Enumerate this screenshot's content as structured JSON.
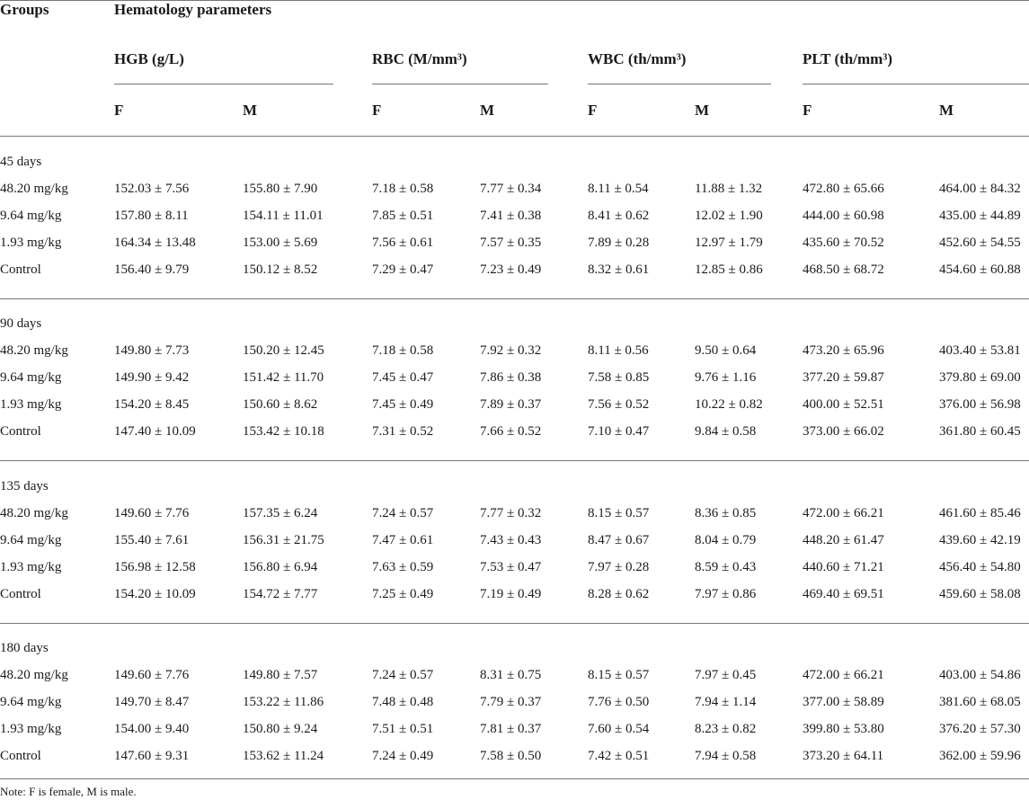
{
  "header": {
    "groups": "Groups",
    "parameters": "Hematology parameters",
    "columns": [
      "HGB (g/L)",
      "RBC (M/mm³)",
      "WBC (th/mm³)",
      "PLT (th/mm³)"
    ],
    "female": "F",
    "male": "M"
  },
  "sections": [
    {
      "label": "45 days",
      "rows": [
        {
          "group": "48.20 mg/kg",
          "cells": [
            "152.03 ± 7.56",
            "155.80 ± 7.90",
            "7.18 ± 0.58",
            "7.77 ± 0.34",
            "8.11 ± 0.54",
            "11.88 ± 1.32",
            "472.80 ± 65.66",
            "464.00 ± 84.32"
          ]
        },
        {
          "group": "9.64 mg/kg",
          "cells": [
            "157.80 ± 8.11",
            "154.11 ± 11.01",
            "7.85 ± 0.51",
            "7.41 ± 0.38",
            "8.41 ± 0.62",
            "12.02 ± 1.90",
            "444.00 ± 60.98",
            "435.00 ± 44.89"
          ]
        },
        {
          "group": "1.93 mg/kg",
          "cells": [
            "164.34 ± 13.48",
            "153.00 ± 5.69",
            "7.56 ± 0.61",
            "7.57 ± 0.35",
            "7.89 ± 0.28",
            "12.97 ± 1.79",
            "435.60 ± 70.52",
            "452.60 ± 54.55"
          ]
        },
        {
          "group": "Control",
          "cells": [
            "156.40 ± 9.79",
            "150.12 ± 8.52",
            "7.29 ± 0.47",
            "7.23 ± 0.49",
            "8.32 ± 0.61",
            "12.85 ± 0.86",
            "468.50 ± 68.72",
            "454.60 ± 60.88"
          ]
        }
      ]
    },
    {
      "label": "90 days",
      "rows": [
        {
          "group": "48.20 mg/kg",
          "cells": [
            "149.80 ± 7.73",
            "150.20 ± 12.45",
            "7.18 ± 0.58",
            "7.92 ± 0.32",
            "8.11 ± 0.56",
            "9.50 ± 0.64",
            "473.20 ± 65.96",
            "403.40 ± 53.81"
          ]
        },
        {
          "group": "9.64 mg/kg",
          "cells": [
            "149.90 ± 9.42",
            "151.42 ± 11.70",
            "7.45 ± 0.47",
            "7.86 ± 0.38",
            "7.58 ± 0.85",
            "9.76 ± 1.16",
            "377.20 ± 59.87",
            "379.80 ± 69.00"
          ]
        },
        {
          "group": "1.93 mg/kg",
          "cells": [
            "154.20 ± 8.45",
            "150.60 ± 8.62",
            "7.45 ± 0.49",
            "7.89 ± 0.37",
            "7.56 ± 0.52",
            "10.22 ± 0.82",
            "400.00 ± 52.51",
            "376.00 ± 56.98"
          ]
        },
        {
          "group": "Control",
          "cells": [
            "147.40 ± 10.09",
            "153.42 ± 10.18",
            "7.31 ± 0.52",
            "7.66 ± 0.52",
            "7.10 ± 0.47",
            "9.84 ± 0.58",
            "373.00 ± 66.02",
            "361.80 ± 60.45"
          ]
        }
      ]
    },
    {
      "label": "135 days",
      "rows": [
        {
          "group": "48.20 mg/kg",
          "cells": [
            "149.60 ± 7.76",
            "157.35 ± 6.24",
            "7.24 ± 0.57",
            "7.77 ± 0.32",
            "8.15 ± 0.57",
            "8.36 ± 0.85",
            "472.00 ± 66.21",
            "461.60 ± 85.46"
          ]
        },
        {
          "group": "9.64 mg/kg",
          "cells": [
            "155.40 ± 7.61",
            "156.31 ± 21.75",
            "7.47 ± 0.61",
            "7.43 ± 0.43",
            "8.47 ± 0.67",
            "8.04 ± 0.79",
            "448.20 ± 61.47",
            "439.60 ± 42.19"
          ]
        },
        {
          "group": "1.93 mg/kg",
          "cells": [
            "156.98 ± 12.58",
            "156.80 ± 6.94",
            "7.63 ± 0.59",
            "7.53 ± 0.47",
            "7.97 ± 0.28",
            "8.59 ± 0.43",
            "440.60 ± 71.21",
            "456.40 ± 54.80"
          ]
        },
        {
          "group": "Control",
          "cells": [
            "154.20 ± 10.09",
            "154.72 ± 7.77",
            "7.25 ± 0.49",
            "7.19 ± 0.49",
            "8.28 ± 0.62",
            "7.97 ± 0.86",
            "469.40 ± 69.51",
            "459.60 ± 58.08"
          ]
        }
      ]
    },
    {
      "label": "180 days",
      "rows": [
        {
          "group": "48.20 mg/kg",
          "cells": [
            "149.60 ± 7.76",
            "149.80 ± 7.57",
            "7.24 ± 0.57",
            "8.31 ± 0.75",
            "8.15 ± 0.57",
            "7.97 ± 0.45",
            "472.00 ± 66.21",
            "403.00 ± 54.86"
          ]
        },
        {
          "group": "9.64 mg/kg",
          "cells": [
            "149.70 ± 8.47",
            "153.22 ± 11.86",
            "7.48 ± 0.48",
            "7.79 ± 0.37",
            "7.76 ± 0.50",
            "7.94 ± 1.14",
            "377.00 ± 58.89",
            "381.60 ± 68.05"
          ]
        },
        {
          "group": "1.93 mg/kg",
          "cells": [
            "154.00 ± 9.40",
            "150.80 ± 9.24",
            "7.51 ± 0.51",
            "7.81 ± 0.37",
            "7.60 ± 0.54",
            "8.23 ± 0.82",
            "399.80 ± 53.80",
            "376.20 ± 57.30"
          ]
        },
        {
          "group": "Control",
          "cells": [
            "147.60 ± 9.31",
            "153.62 ± 11.24",
            "7.24 ± 0.49",
            "7.58 ± 0.50",
            "7.42 ± 0.51",
            "7.94 ± 0.58",
            "373.20 ± 64.11",
            "362.00 ± 59.96"
          ]
        }
      ]
    }
  ],
  "note": "Note: F is female, M is male."
}
